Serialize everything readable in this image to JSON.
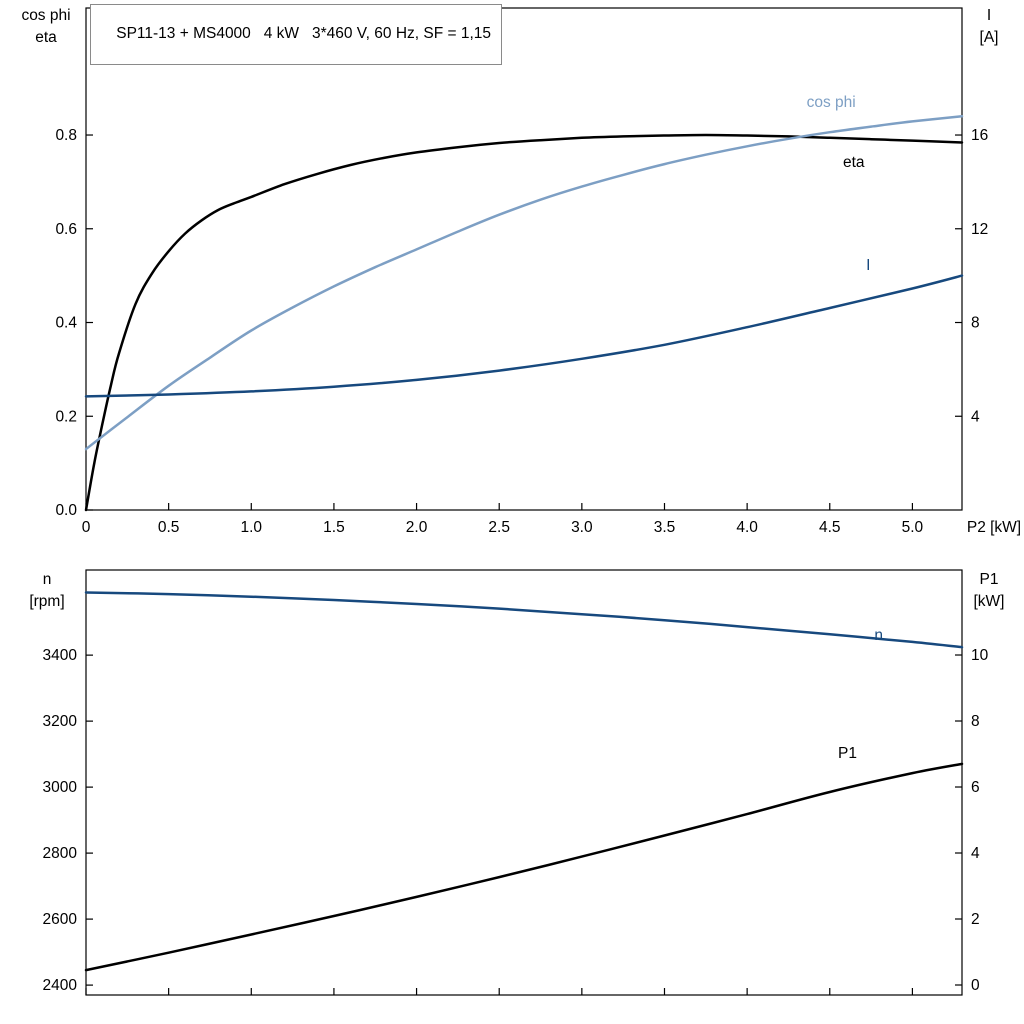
{
  "title_box": {
    "text": "SP11-13 + MS4000   4 kW   3*460 V, 60 Hz, SF = 1,15"
  },
  "colors": {
    "background": "#ffffff",
    "frame": "#000000",
    "curve_black": "#000000",
    "curve_light_blue": "#7d9fc4",
    "curve_dark_blue": "#17497e",
    "tick_text": "#000000"
  },
  "chart_data": [
    {
      "type": "line",
      "title": "SP11-13 + MS4000   4 kW   3*460 V, 60 Hz, SF = 1,15",
      "axes": {
        "left": {
          "title_lines": [
            "cos phi",
            "eta"
          ],
          "range": [
            0,
            1.071
          ],
          "ticks": [
            0.0,
            0.2,
            0.4,
            0.6,
            0.8
          ],
          "tick_labels": [
            "0.0",
            "0.2",
            "0.4",
            "0.6",
            "0.8"
          ]
        },
        "right": {
          "title_lines": [
            "I",
            "[A]"
          ],
          "range": [
            0,
            21.42
          ],
          "ticks": [
            4,
            8,
            12,
            16
          ],
          "tick_labels": [
            "4",
            "8",
            "12",
            "16"
          ]
        },
        "x": {
          "label": "P2 [kW]",
          "range": [
            0,
            5.3
          ],
          "ticks": [
            0,
            0.5,
            1.0,
            1.5,
            2.0,
            2.5,
            3.0,
            3.5,
            4.0,
            4.5,
            5.0
          ],
          "tick_labels": [
            "0",
            "0.5",
            "1.0",
            "1.5",
            "2.0",
            "2.5",
            "3.0",
            "3.5",
            "4.0",
            "4.5",
            "5.0"
          ],
          "show_tick_labels": true
        }
      },
      "series": [
        {
          "name": "eta",
          "axis": "left",
          "color_key": "curve_black",
          "label": {
            "text": "eta",
            "x": 4.58,
            "y": 0.732
          },
          "points": [
            [
              0,
              0
            ],
            [
              0.05,
              0.1
            ],
            [
              0.1,
              0.185
            ],
            [
              0.15,
              0.265
            ],
            [
              0.2,
              0.335
            ],
            [
              0.3,
              0.44
            ],
            [
              0.4,
              0.505
            ],
            [
              0.5,
              0.552
            ],
            [
              0.6,
              0.59
            ],
            [
              0.7,
              0.618
            ],
            [
              0.8,
              0.64
            ],
            [
              0.9,
              0.655
            ],
            [
              1.0,
              0.668
            ],
            [
              1.2,
              0.695
            ],
            [
              1.4,
              0.717
            ],
            [
              1.6,
              0.736
            ],
            [
              1.8,
              0.751
            ],
            [
              2.0,
              0.763
            ],
            [
              2.25,
              0.774
            ],
            [
              2.5,
              0.783
            ],
            [
              2.75,
              0.789
            ],
            [
              3.0,
              0.794
            ],
            [
              3.25,
              0.797
            ],
            [
              3.5,
              0.799
            ],
            [
              3.75,
              0.8
            ],
            [
              4.0,
              0.799
            ],
            [
              4.25,
              0.797
            ],
            [
              4.5,
              0.794
            ],
            [
              4.75,
              0.791
            ],
            [
              5.0,
              0.788
            ],
            [
              5.3,
              0.784
            ]
          ]
        },
        {
          "name": "cos phi",
          "axis": "left",
          "color_key": "curve_light_blue",
          "label": {
            "text": "cos phi",
            "x": 4.36,
            "y": 0.86
          },
          "points": [
            [
              0,
              0.13
            ],
            [
              0.25,
              0.198
            ],
            [
              0.5,
              0.265
            ],
            [
              0.75,
              0.325
            ],
            [
              1.0,
              0.383
            ],
            [
              1.25,
              0.432
            ],
            [
              1.5,
              0.477
            ],
            [
              1.75,
              0.518
            ],
            [
              2.0,
              0.556
            ],
            [
              2.25,
              0.594
            ],
            [
              2.5,
              0.63
            ],
            [
              2.75,
              0.662
            ],
            [
              3.0,
              0.69
            ],
            [
              3.25,
              0.715
            ],
            [
              3.5,
              0.738
            ],
            [
              3.75,
              0.758
            ],
            [
              4.0,
              0.776
            ],
            [
              4.25,
              0.792
            ],
            [
              4.5,
              0.806
            ],
            [
              4.75,
              0.818
            ],
            [
              5.0,
              0.829
            ],
            [
              5.3,
              0.84
            ]
          ]
        },
        {
          "name": "I",
          "axis": "right",
          "color_key": "curve_dark_blue",
          "label": {
            "text": "I",
            "x": 4.72,
            "y": 10.24
          },
          "points": [
            [
              0,
              4.85
            ],
            [
              0.5,
              4.93
            ],
            [
              1.0,
              5.06
            ],
            [
              1.5,
              5.26
            ],
            [
              2.0,
              5.55
            ],
            [
              2.5,
              5.95
            ],
            [
              3.0,
              6.45
            ],
            [
              3.5,
              7.05
            ],
            [
              4.0,
              7.8
            ],
            [
              4.5,
              8.62
            ],
            [
              5.0,
              9.45
            ],
            [
              5.3,
              10.0
            ]
          ]
        }
      ]
    },
    {
      "type": "line",
      "axes": {
        "left": {
          "title_lines": [
            "n",
            "[rpm]"
          ],
          "range": [
            2370,
            3658
          ],
          "ticks": [
            2400,
            2600,
            2800,
            3000,
            3200,
            3400
          ],
          "tick_labels": [
            "2400",
            "2600",
            "2800",
            "3000",
            "3200",
            "3400"
          ]
        },
        "right": {
          "title_lines": [
            "P1",
            "[kW]"
          ],
          "range": [
            -0.303,
            12.576
          ],
          "ticks": [
            0,
            2,
            4,
            6,
            8,
            10
          ],
          "tick_labels": [
            "0",
            "2",
            "4",
            "6",
            "8",
            "10"
          ]
        },
        "x": {
          "label": "",
          "range": [
            0,
            5.3
          ],
          "ticks": [
            0,
            0.5,
            1.0,
            1.5,
            2.0,
            2.5,
            3.0,
            3.5,
            4.0,
            4.5,
            5.0
          ],
          "tick_labels": [],
          "show_tick_labels": false
        }
      },
      "series": [
        {
          "name": "n",
          "axis": "left",
          "color_key": "curve_dark_blue",
          "label": {
            "text": "n",
            "x": 4.77,
            "y": 3446
          },
          "points": [
            [
              0,
              3590
            ],
            [
              0.5,
              3585
            ],
            [
              1.0,
              3577
            ],
            [
              1.5,
              3567
            ],
            [
              2.0,
              3555
            ],
            [
              2.5,
              3541
            ],
            [
              3.0,
              3524
            ],
            [
              3.5,
              3506
            ],
            [
              4.0,
              3485
            ],
            [
              4.5,
              3463
            ],
            [
              5.0,
              3440
            ],
            [
              5.3,
              3424
            ]
          ]
        },
        {
          "name": "P1",
          "axis": "right",
          "color_key": "curve_black",
          "label": {
            "text": "P1",
            "x": 4.55,
            "y": 6.88
          },
          "points": [
            [
              0,
              0.45
            ],
            [
              0.5,
              0.98
            ],
            [
              1.0,
              1.53
            ],
            [
              1.5,
              2.09
            ],
            [
              2.0,
              2.67
            ],
            [
              2.5,
              3.27
            ],
            [
              3.0,
              3.89
            ],
            [
              3.5,
              4.53
            ],
            [
              4.0,
              5.18
            ],
            [
              4.5,
              5.85
            ],
            [
              5.0,
              6.42
            ],
            [
              5.3,
              6.7
            ]
          ]
        }
      ]
    }
  ]
}
